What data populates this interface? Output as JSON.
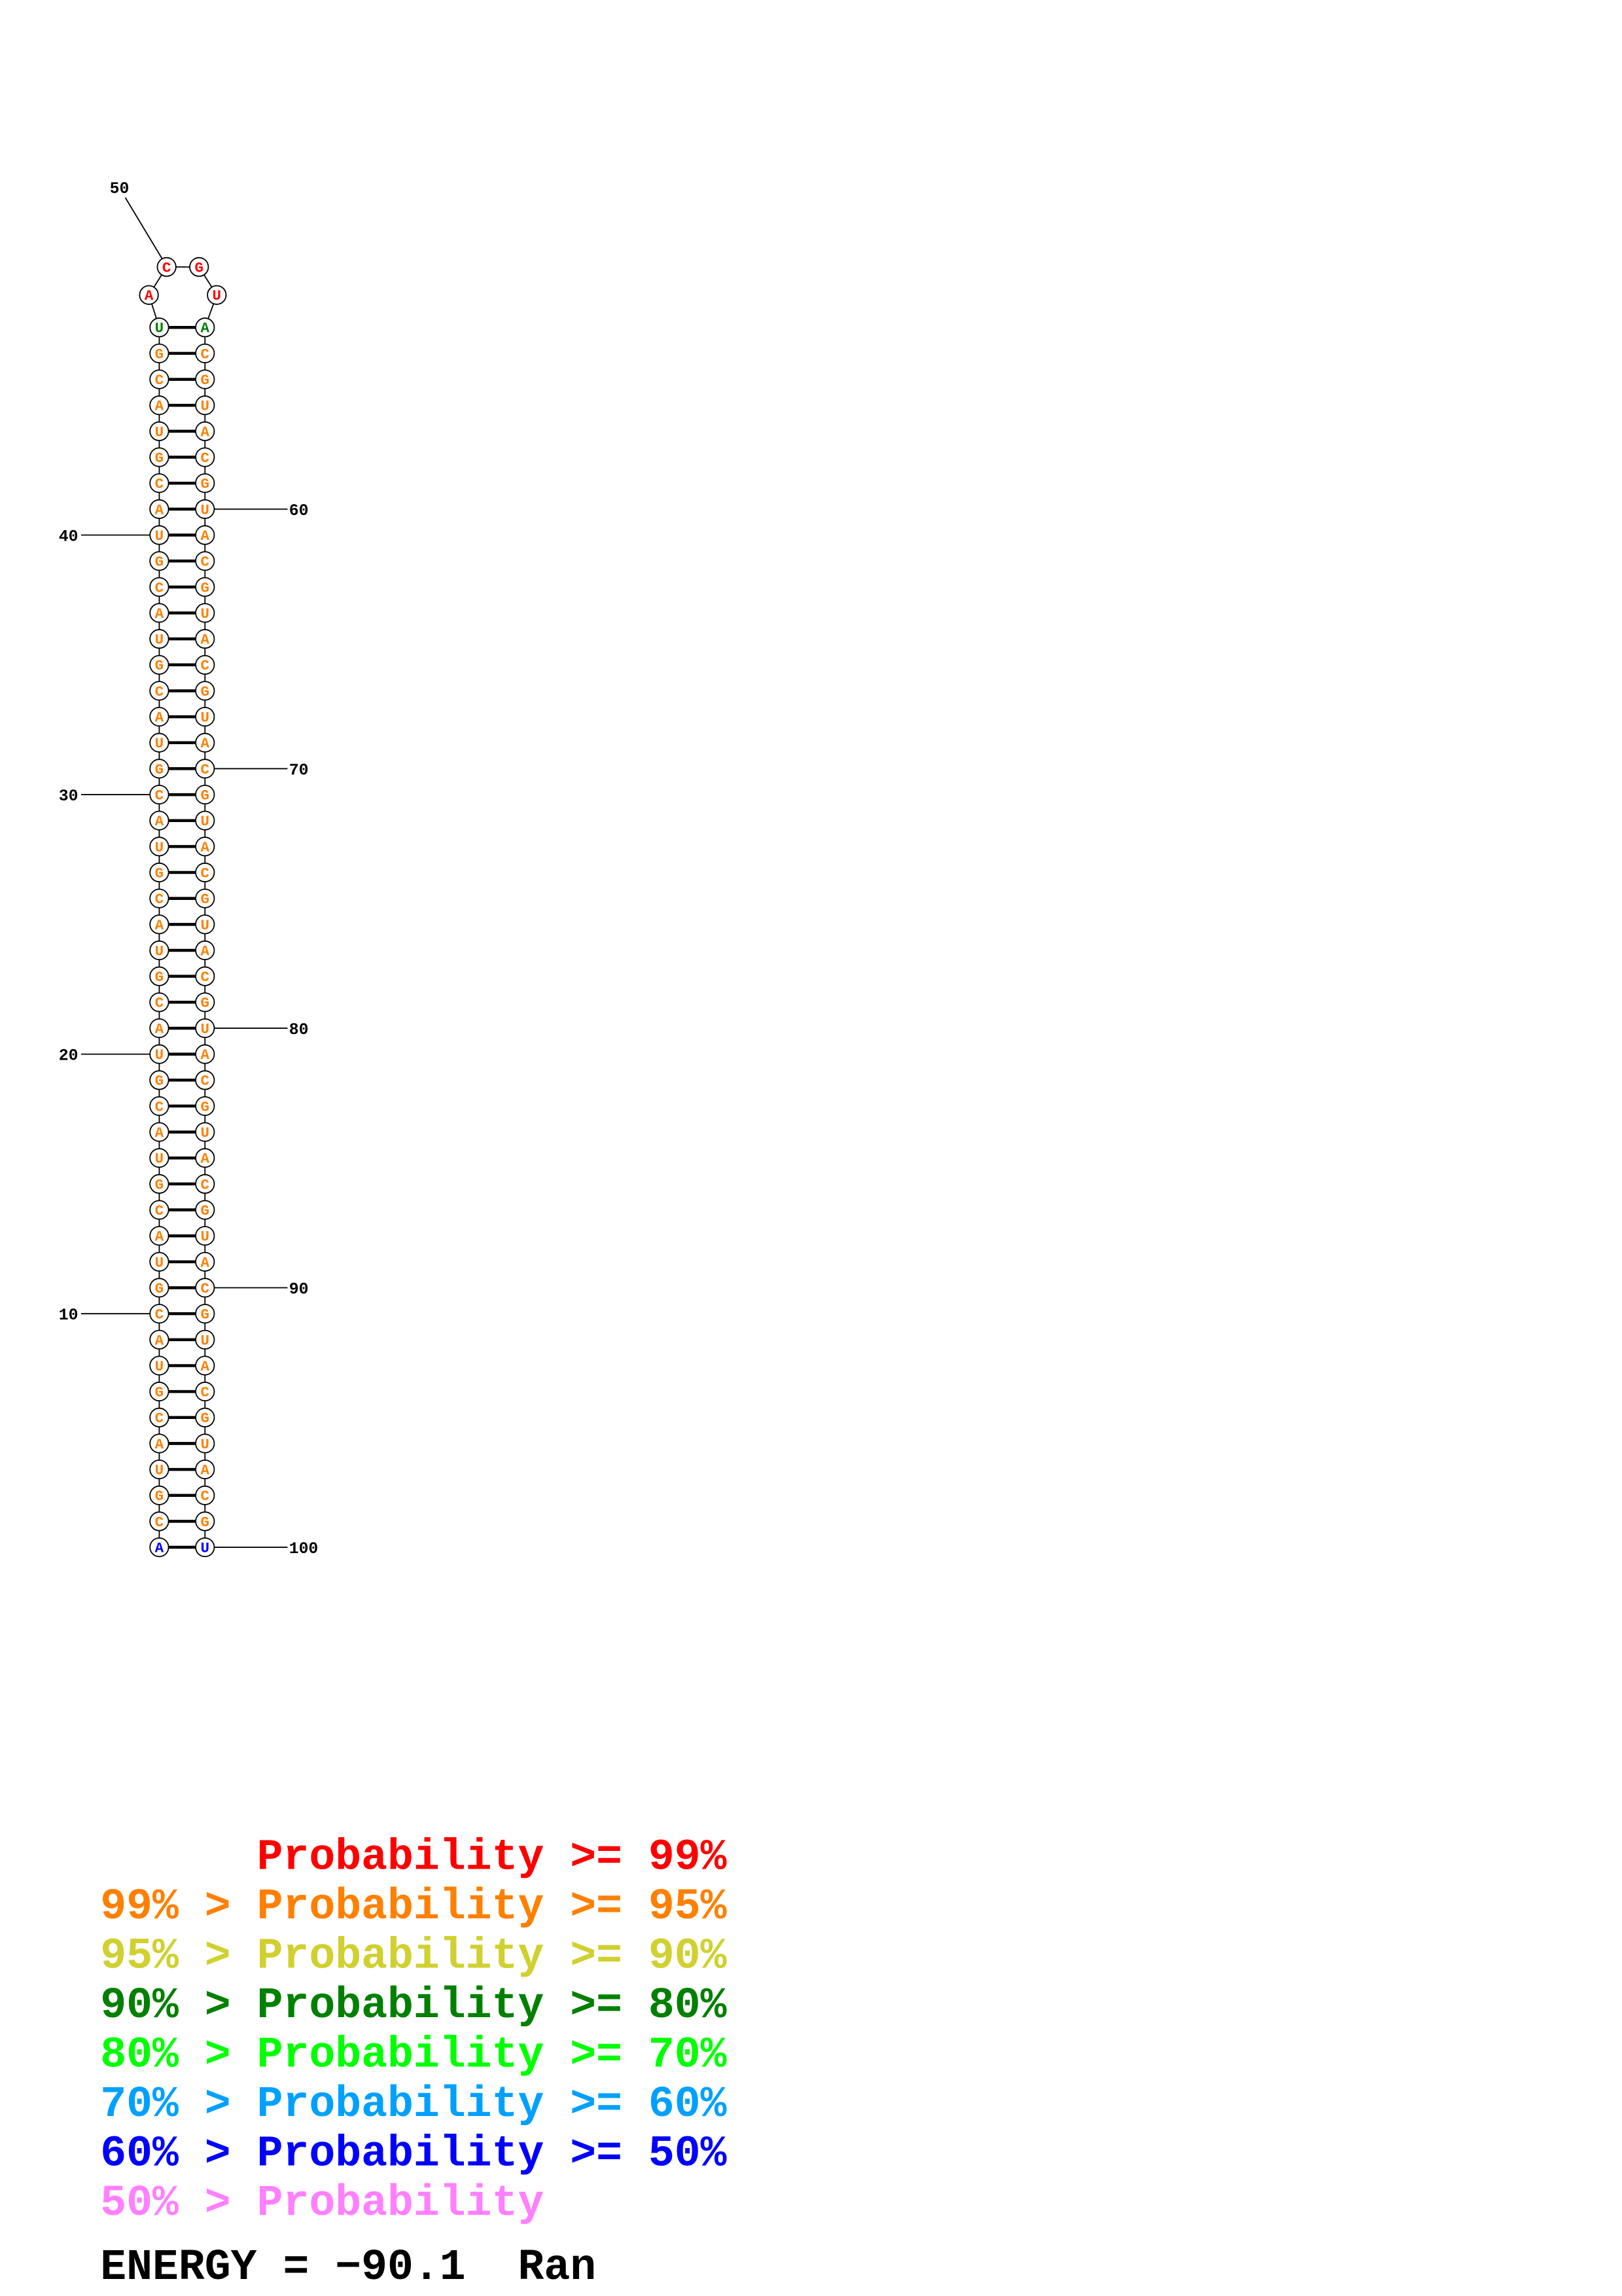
{
  "bases": [
    "A",
    "C",
    "G",
    "U",
    "A",
    "C",
    "G",
    "U",
    "A",
    "C",
    "G",
    "U",
    "A",
    "C",
    "G",
    "U",
    "A",
    "C",
    "G",
    "U",
    "A",
    "C",
    "G",
    "U",
    "A",
    "C",
    "G",
    "U",
    "A",
    "C",
    "G",
    "U",
    "A",
    "C",
    "G",
    "U",
    "A",
    "C",
    "G",
    "U",
    "A",
    "C",
    "G",
    "U",
    "A",
    "C",
    "G",
    "U",
    "A",
    "C",
    "G",
    "U",
    "A",
    "C",
    "G",
    "U",
    "A",
    "C",
    "G",
    "U",
    "A",
    "C",
    "G",
    "U",
    "A",
    "C",
    "G",
    "U",
    "A",
    "C",
    "G",
    "U",
    "A",
    "C",
    "G",
    "U",
    "A",
    "C",
    "G",
    "U",
    "A",
    "C",
    "G",
    "U",
    "A",
    "C",
    "G",
    "U",
    "A",
    "C",
    "G",
    "U",
    "A",
    "C",
    "G",
    "U",
    "A",
    "C",
    "G",
    "U"
  ],
  "base_colors": [
    "#0000ff",
    "#ff8000",
    "#ff8000",
    "#ff8000",
    "#ff8000",
    "#ff8000",
    "#ff8000",
    "#ff8000",
    "#ff8000",
    "#ff8000",
    "#ff8000",
    "#ff8000",
    "#ff8000",
    "#ff8000",
    "#ff8000",
    "#ff8000",
    "#ff8000",
    "#ff8000",
    "#ff8000",
    "#ff8000",
    "#ff8000",
    "#ff8000",
    "#ff8000",
    "#ff8000",
    "#ff8000",
    "#ff8000",
    "#ff8000",
    "#ff8000",
    "#ff8000",
    "#ff8000",
    "#ff8000",
    "#ff8000",
    "#ff8000",
    "#ff8000",
    "#ff8000",
    "#ff8000",
    "#ff8000",
    "#ff8000",
    "#ff8000",
    "#ff8000",
    "#ff8000",
    "#ff8000",
    "#ff8000",
    "#ff8000",
    "#ff8000",
    "#ff8000",
    "#ff8000",
    "#008000",
    "#ff0000",
    "#ff0000",
    "#ff0000",
    "#ff0000",
    "#008000",
    "#ff8000",
    "#ff8000",
    "#ff8000",
    "#ff8000",
    "#ff8000",
    "#ff8000",
    "#ff8000",
    "#ff8000",
    "#ff8000",
    "#ff8000",
    "#ff8000",
    "#ff8000",
    "#ff8000",
    "#ff8000",
    "#ff8000",
    "#ff8000",
    "#ff8000",
    "#ff8000",
    "#ff8000",
    "#ff8000",
    "#ff8000",
    "#ff8000",
    "#ff8000",
    "#ff8000",
    "#ff8000",
    "#ff8000",
    "#ff8000",
    "#ff8000",
    "#ff8000",
    "#ff8000",
    "#ff8000",
    "#ff8000",
    "#ff8000",
    "#ff8000",
    "#ff8000",
    "#ff8000",
    "#ff8000",
    "#ff8000",
    "#ff8000",
    "#ff8000",
    "#ff8000",
    "#ff8000",
    "#ff8000",
    "#ff8000",
    "#ff8000",
    "#ff8000",
    "#0000ff"
  ],
  "position_labels": [
    10,
    20,
    30,
    40,
    50,
    60,
    70,
    80,
    90,
    100
  ],
  "legend": [
    {
      "label": "Probability >= 99%",
      "color": "#ff0000"
    },
    {
      "label": "99% > Probability >= 95%",
      "color": "#ff8000"
    },
    {
      "label": "95% > Probability >= 90%",
      "color": "#d0d030"
    },
    {
      "label": "90% > Probability >= 80%",
      "color": "#008000"
    },
    {
      "label": "80% > Probability >= 70%",
      "color": "#00ff00"
    },
    {
      "label": "70% > Probability >= 60%",
      "color": "#00a0ff"
    },
    {
      "label": "60% > Probability >= 50%",
      "color": "#0000ff"
    },
    {
      "label": "50% > Probability",
      "color": "#ff80ff"
    }
  ],
  "energy_line": "ENERGY = −90.1  Ran"
}
